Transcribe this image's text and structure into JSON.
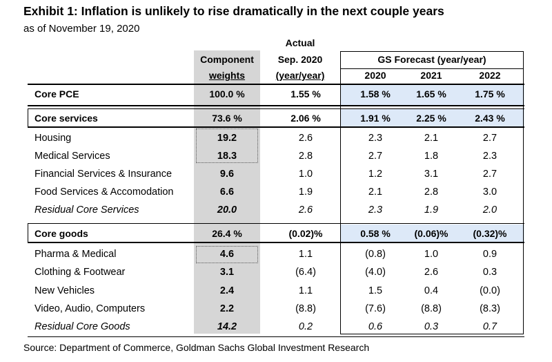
{
  "title": "Exhibit 1: Inflation is unlikely to rise dramatically in the next couple years",
  "subtitle": "as of November 19, 2020",
  "header": {
    "weights_line1": "Component",
    "weights_line2": "weights",
    "actual_line1": "Actual",
    "actual_line2": "Sep. 2020",
    "actual_line3": "(year/year)",
    "forecast_label": "GS Forecast (year/year)",
    "year1": "2020",
    "year2": "2021",
    "year3": "2022"
  },
  "rows": [
    {
      "label": "Core PCE",
      "weight": "100.0 %",
      "actual": "1.55 %",
      "f2020": "1.58 %",
      "f2021": "1.65 %",
      "f2022": "1.75 %"
    },
    {
      "label": "Core services",
      "weight": "73.6 %",
      "actual": "2.06 %",
      "f2020": "1.91 %",
      "f2021": "2.25 %",
      "f2022": "2.43 %"
    },
    {
      "label": "Housing",
      "weight": "19.2",
      "actual": "2.6",
      "f2020": "2.3",
      "f2021": "2.1",
      "f2022": "2.7"
    },
    {
      "label": "Medical Services",
      "weight": "18.3",
      "actual": "2.8",
      "f2020": "2.7",
      "f2021": "1.8",
      "f2022": "2.3"
    },
    {
      "label": "Financial Services & Insurance",
      "weight": "9.6",
      "actual": "1.0",
      "f2020": "1.2",
      "f2021": "3.1",
      "f2022": "2.7"
    },
    {
      "label": "Food Services & Accomodation",
      "weight": "6.6",
      "actual": "1.9",
      "f2020": "2.1",
      "f2021": "2.8",
      "f2022": "3.0"
    },
    {
      "label": "Residual Core Services",
      "weight": "20.0",
      "actual": "2.6",
      "f2020": "2.3",
      "f2021": "1.9",
      "f2022": "2.0"
    },
    {
      "label": "Core goods",
      "weight": "26.4 %",
      "actual": "(0.02)%",
      "f2020": "0.58 %",
      "f2021": "(0.06)%",
      "f2022": "(0.32)%"
    },
    {
      "label": "Pharma & Medical",
      "weight": "4.6",
      "actual": "1.1",
      "f2020": "(0.8)",
      "f2021": "1.0",
      "f2022": "0.9"
    },
    {
      "label": "Clothing & Footwear",
      "weight": "3.1",
      "actual": "(6.4)",
      "f2020": "(4.0)",
      "f2021": "2.6",
      "f2022": "0.3"
    },
    {
      "label": "New Vehicles",
      "weight": "2.4",
      "actual": "1.1",
      "f2020": "1.5",
      "f2021": "0.4",
      "f2022": "(0.0)"
    },
    {
      "label": "Video, Audio, Computers",
      "weight": "2.2",
      "actual": "(8.8)",
      "f2020": "(7.6)",
      "f2021": "(8.8)",
      "f2022": "(8.3)"
    },
    {
      "label": "Residual Core Goods",
      "weight": "14.2",
      "actual": "0.2",
      "f2020": "0.6",
      "f2021": "0.3",
      "f2022": "0.7"
    }
  ],
  "source": "Source: Department of Commerce, Goldman Sachs Global Investment Research",
  "colors": {
    "weights_column": "#d6d6d6",
    "forecast_highlight": "#dde9f8"
  }
}
